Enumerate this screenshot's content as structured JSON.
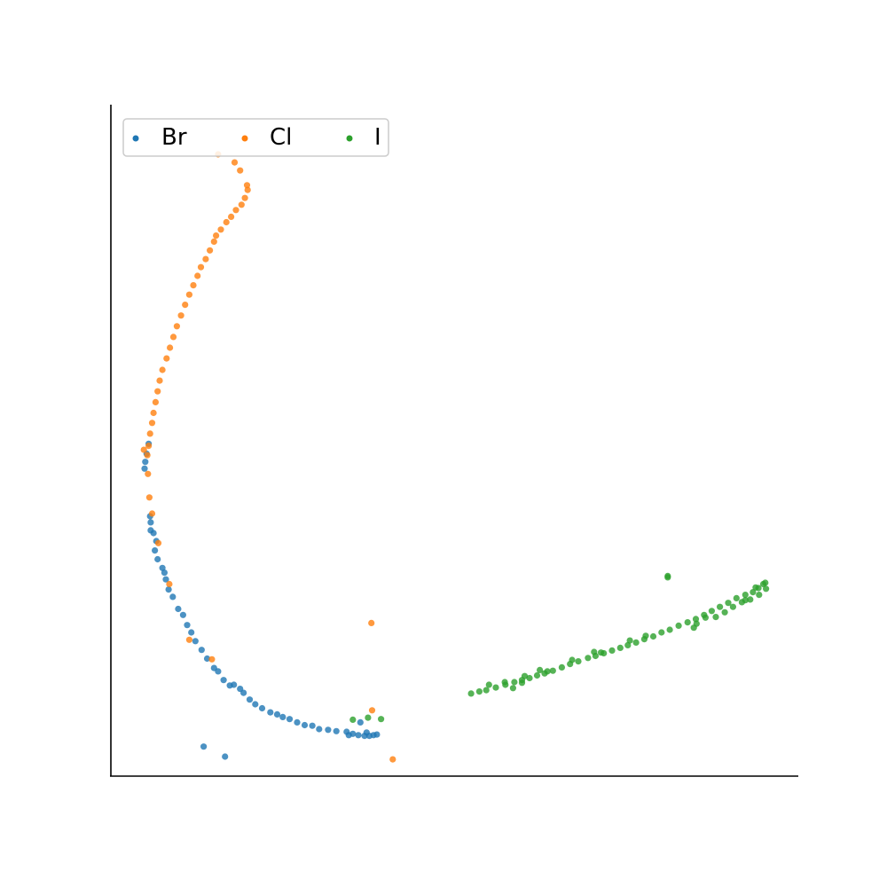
{
  "chart_data": {
    "type": "scatter",
    "title": "",
    "xlabel": "",
    "ylabel": "",
    "xlim": [
      0,
      100
    ],
    "ylim": [
      0,
      100
    ],
    "grid": false,
    "legend": "top-left",
    "legend_columns": 3,
    "series": [
      {
        "name": "Br",
        "color": "#1f77b4",
        "points": [
          [
            4.9,
            45.8
          ],
          [
            5.0,
            46.8
          ],
          [
            5.2,
            48.0
          ],
          [
            5.5,
            49.5
          ],
          [
            5.8,
            37.8
          ],
          [
            5.7,
            38.7
          ],
          [
            5.8,
            36.6
          ],
          [
            6.2,
            36.2
          ],
          [
            6.6,
            35.0
          ],
          [
            6.4,
            33.6
          ],
          [
            6.8,
            32.3
          ],
          [
            7.5,
            31.0
          ],
          [
            7.8,
            30.3
          ],
          [
            8.0,
            29.3
          ],
          [
            8.4,
            27.8
          ],
          [
            9.0,
            26.7
          ],
          [
            9.8,
            24.9
          ],
          [
            10.5,
            24.0
          ],
          [
            11.1,
            22.5
          ],
          [
            11.7,
            21.4
          ],
          [
            12.3,
            20.1
          ],
          [
            13.2,
            18.8
          ],
          [
            14.0,
            17.5
          ],
          [
            15.0,
            16.1
          ],
          [
            15.6,
            15.6
          ],
          [
            16.4,
            14.3
          ],
          [
            17.3,
            13.5
          ],
          [
            17.9,
            13.6
          ],
          [
            18.8,
            13.0
          ],
          [
            19.3,
            12.4
          ],
          [
            20.2,
            11.4
          ],
          [
            21.0,
            10.7
          ],
          [
            22.0,
            10.1
          ],
          [
            23.2,
            9.5
          ],
          [
            24.2,
            9.2
          ],
          [
            25.0,
            8.8
          ],
          [
            26.0,
            8.5
          ],
          [
            27.1,
            8.0
          ],
          [
            28.2,
            7.6
          ],
          [
            29.3,
            7.5
          ],
          [
            30.3,
            7.0
          ],
          [
            31.6,
            6.9
          ],
          [
            32.8,
            6.7
          ],
          [
            34.3,
            6.6
          ],
          [
            35.2,
            6.3
          ],
          [
            36.0,
            6.1
          ],
          [
            36.9,
            6.0
          ],
          [
            37.6,
            6.0
          ],
          [
            38.2,
            6.1
          ],
          [
            38.7,
            6.2
          ],
          [
            37.2,
            6.5
          ],
          [
            34.6,
            6.1
          ],
          [
            36.3,
            8.0
          ],
          [
            16.6,
            2.9
          ],
          [
            13.5,
            4.4
          ]
        ]
      },
      {
        "name": "Cl",
        "color": "#ff7f0e",
        "points": [
          [
            15.6,
            92.6
          ],
          [
            18.0,
            91.4
          ],
          [
            18.8,
            90.2
          ],
          [
            19.8,
            88.0
          ],
          [
            19.9,
            87.3
          ],
          [
            19.5,
            86.1
          ],
          [
            19.0,
            85.1
          ],
          [
            18.2,
            84.3
          ],
          [
            17.5,
            83.3
          ],
          [
            16.8,
            82.5
          ],
          [
            16.0,
            81.4
          ],
          [
            15.3,
            80.5
          ],
          [
            15.0,
            79.6
          ],
          [
            14.4,
            78.3
          ],
          [
            13.8,
            77.0
          ],
          [
            13.1,
            75.8
          ],
          [
            12.6,
            74.5
          ],
          [
            12.0,
            73.1
          ],
          [
            11.4,
            71.7
          ],
          [
            10.8,
            70.2
          ],
          [
            10.2,
            68.6
          ],
          [
            9.6,
            67.0
          ],
          [
            9.1,
            65.4
          ],
          [
            8.6,
            63.8
          ],
          [
            8.1,
            62.2
          ],
          [
            7.5,
            60.5
          ],
          [
            7.1,
            58.9
          ],
          [
            6.8,
            57.3
          ],
          [
            6.5,
            55.7
          ],
          [
            6.2,
            54.1
          ],
          [
            6.0,
            52.6
          ],
          [
            5.7,
            51.0
          ],
          [
            5.5,
            49.2
          ],
          [
            5.3,
            47.8
          ],
          [
            4.8,
            48.6
          ],
          [
            5.4,
            45.0
          ],
          [
            5.6,
            41.5
          ],
          [
            6.0,
            39.1
          ],
          [
            6.9,
            34.7
          ],
          [
            8.5,
            28.6
          ],
          [
            11.4,
            20.3
          ],
          [
            14.7,
            17.4
          ],
          [
            38.0,
            9.8
          ],
          [
            37.9,
            22.8
          ],
          [
            41.0,
            2.5
          ]
        ]
      },
      {
        "name": "I",
        "color": "#2ca02c",
        "points": [
          [
            35.2,
            8.4
          ],
          [
            37.4,
            8.7
          ],
          [
            39.3,
            8.5
          ],
          [
            52.4,
            12.3
          ],
          [
            53.6,
            12.6
          ],
          [
            54.6,
            12.8
          ],
          [
            56.0,
            13.2
          ],
          [
            57.4,
            13.6
          ],
          [
            58.7,
            14.0
          ],
          [
            59.8,
            14.3
          ],
          [
            60.9,
            14.6
          ],
          [
            62.0,
            15.0
          ],
          [
            63.1,
            15.3
          ],
          [
            64.3,
            15.7
          ],
          [
            65.6,
            16.2
          ],
          [
            66.8,
            16.7
          ],
          [
            68.0,
            17.1
          ],
          [
            69.4,
            17.6
          ],
          [
            70.5,
            17.9
          ],
          [
            71.7,
            18.3
          ],
          [
            72.9,
            18.7
          ],
          [
            74.1,
            19.1
          ],
          [
            75.2,
            19.5
          ],
          [
            76.4,
            19.9
          ],
          [
            77.6,
            20.4
          ],
          [
            78.9,
            20.8
          ],
          [
            80.1,
            21.4
          ],
          [
            81.3,
            21.8
          ],
          [
            82.6,
            22.4
          ],
          [
            83.9,
            22.9
          ],
          [
            85.1,
            23.4
          ],
          [
            86.3,
            24.0
          ],
          [
            87.4,
            24.6
          ],
          [
            88.6,
            25.2
          ],
          [
            89.8,
            25.8
          ],
          [
            91.0,
            26.5
          ],
          [
            92.3,
            27.0
          ],
          [
            93.4,
            27.4
          ],
          [
            94.2,
            28.0
          ],
          [
            95.2,
            28.8
          ],
          [
            95.3,
            27.9
          ],
          [
            94.3,
            27.0
          ],
          [
            93.0,
            26.3
          ],
          [
            91.8,
            25.9
          ],
          [
            90.5,
            25.2
          ],
          [
            89.3,
            24.4
          ],
          [
            88.0,
            23.7
          ],
          [
            85.2,
            22.7
          ],
          [
            55.0,
            13.6
          ],
          [
            57.3,
            14.0
          ],
          [
            58.5,
            13.1
          ],
          [
            60.2,
            14.9
          ],
          [
            62.4,
            15.8
          ],
          [
            70.3,
            18.5
          ],
          [
            75.5,
            20.2
          ],
          [
            81.0,
            29.8
          ],
          [
            81.0,
            29.6
          ],
          [
            59.8,
            13.9
          ],
          [
            63.5,
            15.6
          ],
          [
            67.1,
            17.3
          ],
          [
            71.3,
            18.4
          ],
          [
            77.8,
            20.9
          ],
          [
            84.8,
            22.1
          ],
          [
            86.5,
            23.6
          ],
          [
            92.3,
            26.2
          ],
          [
            93.8,
            28.1
          ],
          [
            94.9,
            28.6
          ]
        ]
      }
    ]
  }
}
